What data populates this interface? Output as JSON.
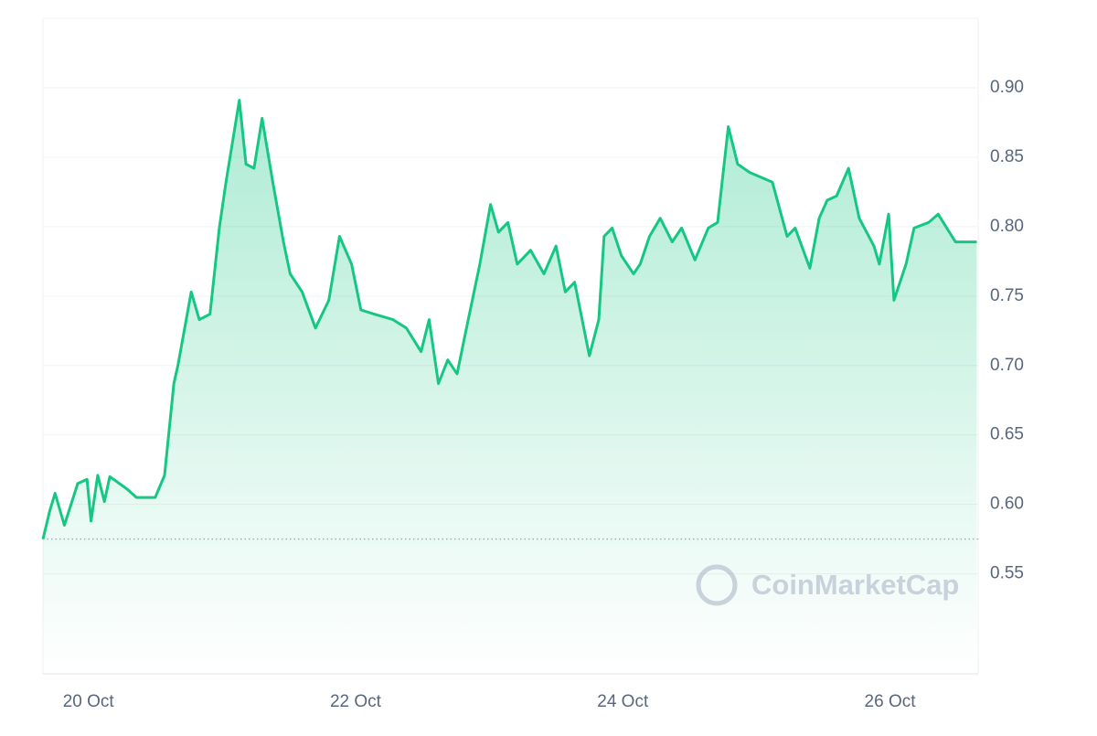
{
  "chart_data": {
    "type": "line",
    "watermark": "CoinMarketCap",
    "xlim": [
      19.66,
      26.66
    ],
    "xticks": [
      {
        "value": 20,
        "label": "20 Oct"
      },
      {
        "value": 22,
        "label": "22 Oct"
      },
      {
        "value": 24,
        "label": "24 Oct"
      },
      {
        "value": 26,
        "label": "26 Oct"
      }
    ],
    "ylim": [
      0.478,
      0.95
    ],
    "yticks": [
      0.55,
      {
        "value": 0.6,
        "label": "0.60"
      },
      0.65,
      {
        "value": 0.7,
        "label": "0.70"
      },
      0.75,
      {
        "value": 0.8,
        "label": "0.80"
      },
      0.85,
      {
        "value": 0.9,
        "label": "0.90"
      }
    ],
    "y_axis_side": "right",
    "grid": true,
    "reference_line": 0.575,
    "series": [
      {
        "color": "#16c784",
        "x": [
          19.66,
          19.71,
          19.75,
          19.82,
          19.92,
          19.99,
          20.02,
          20.07,
          20.12,
          20.16,
          20.29,
          20.36,
          20.5,
          20.57,
          20.64,
          20.67,
          20.77,
          20.83,
          20.91,
          20.98,
          21.03,
          21.13,
          21.18,
          21.24,
          21.3,
          21.38,
          21.46,
          21.51,
          21.6,
          21.7,
          21.8,
          21.88,
          21.97,
          22.04,
          22.14,
          22.28,
          22.38,
          22.49,
          22.55,
          22.62,
          22.69,
          22.76,
          22.83,
          22.93,
          23.01,
          23.07,
          23.14,
          23.21,
          23.31,
          23.41,
          23.5,
          23.57,
          23.64,
          23.75,
          23.82,
          23.86,
          23.92,
          23.99,
          24.08,
          24.13,
          24.2,
          24.28,
          24.37,
          24.44,
          24.54,
          24.64,
          24.71,
          24.79,
          24.86,
          24.95,
          25.12,
          25.23,
          25.29,
          25.4,
          25.47,
          25.53,
          25.6,
          25.69,
          25.77,
          25.88,
          25.92,
          25.99,
          26.03,
          26.12,
          26.18,
          26.29,
          26.36,
          26.49,
          26.65
        ],
        "values": [
          0.575,
          0.595,
          0.608,
          0.585,
          0.615,
          0.618,
          0.588,
          0.621,
          0.602,
          0.62,
          0.611,
          0.605,
          0.605,
          0.621,
          0.687,
          0.7,
          0.753,
          0.733,
          0.737,
          0.799,
          0.832,
          0.891,
          0.845,
          0.842,
          0.878,
          0.832,
          0.789,
          0.766,
          0.753,
          0.727,
          0.747,
          0.793,
          0.773,
          0.74,
          0.737,
          0.733,
          0.727,
          0.71,
          0.733,
          0.687,
          0.704,
          0.694,
          0.727,
          0.773,
          0.816,
          0.796,
          0.803,
          0.773,
          0.783,
          0.766,
          0.786,
          0.753,
          0.76,
          0.707,
          0.733,
          0.793,
          0.799,
          0.779,
          0.766,
          0.773,
          0.793,
          0.806,
          0.789,
          0.799,
          0.776,
          0.799,
          0.803,
          0.872,
          0.845,
          0.839,
          0.832,
          0.793,
          0.799,
          0.77,
          0.806,
          0.819,
          0.822,
          0.842,
          0.806,
          0.786,
          0.773,
          0.809,
          0.747,
          0.773,
          0.799,
          0.803,
          0.809,
          0.789,
          0.789
        ]
      }
    ]
  }
}
